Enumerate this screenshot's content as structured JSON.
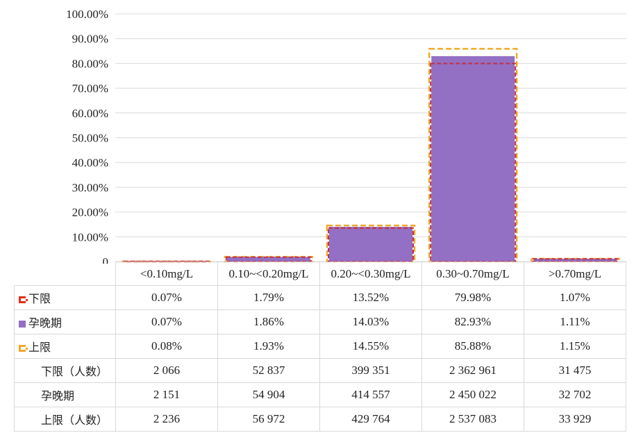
{
  "chart_data": {
    "type": "bar",
    "categories": [
      "<0.10mg/L",
      "0.10~<0.20mg/L",
      "0.20~<0.30mg/L",
      "0.30~0.70mg/L",
      ">0.70mg/L"
    ],
    "ylim": [
      0,
      100
    ],
    "y_ticks": [
      "100.00%",
      "90.00%",
      "80.00%",
      "70.00%",
      "60.00%",
      "50.00%",
      "40.00%",
      "30.00%",
      "20.00%",
      "10.00%",
      "0"
    ],
    "y_tick_values": [
      100,
      90,
      80,
      70,
      60,
      50,
      40,
      30,
      20,
      10,
      0
    ],
    "grid": true,
    "series": [
      {
        "name": "下限",
        "values": [
          0.07,
          1.79,
          13.52,
          79.98,
          1.07
        ],
        "color": "#c0304a",
        "style": "dashed-outline"
      },
      {
        "name": "孕晚期",
        "values": [
          0.07,
          1.86,
          14.03,
          82.93,
          1.11
        ],
        "color": "#9370c4",
        "style": "solid-bar"
      },
      {
        "name": "上限",
        "values": [
          0.08,
          1.93,
          14.55,
          85.88,
          1.15
        ],
        "color": "#f0a82a",
        "style": "dashed-outline"
      }
    ]
  },
  "table": {
    "rows": [
      {
        "label": "下限",
        "key": "lower",
        "cells": [
          "0.07%",
          "1.79%",
          "13.52%",
          "79.98%",
          "1.07%"
        ]
      },
      {
        "label": "孕晚期",
        "key": "purple",
        "cells": [
          "0.07%",
          "1.86%",
          "14.03%",
          "82.93%",
          "1.11%"
        ]
      },
      {
        "label": "上限",
        "key": "upper",
        "cells": [
          "0.08%",
          "1.93%",
          "14.55%",
          "85.88%",
          "1.15%"
        ]
      },
      {
        "label": "下限（人数）",
        "key": "",
        "cells": [
          "2 066",
          "52 837",
          "399 351",
          "2 362 961",
          "31 475"
        ]
      },
      {
        "label": "孕晚期",
        "key": "",
        "cells": [
          "2 151",
          "54 904",
          "414 557",
          "2 450 022",
          "32 702"
        ]
      },
      {
        "label": "上限（人数）",
        "key": "",
        "cells": [
          "2 236",
          "56 972",
          "429 764",
          "2 537 083",
          "33 929"
        ]
      }
    ]
  }
}
